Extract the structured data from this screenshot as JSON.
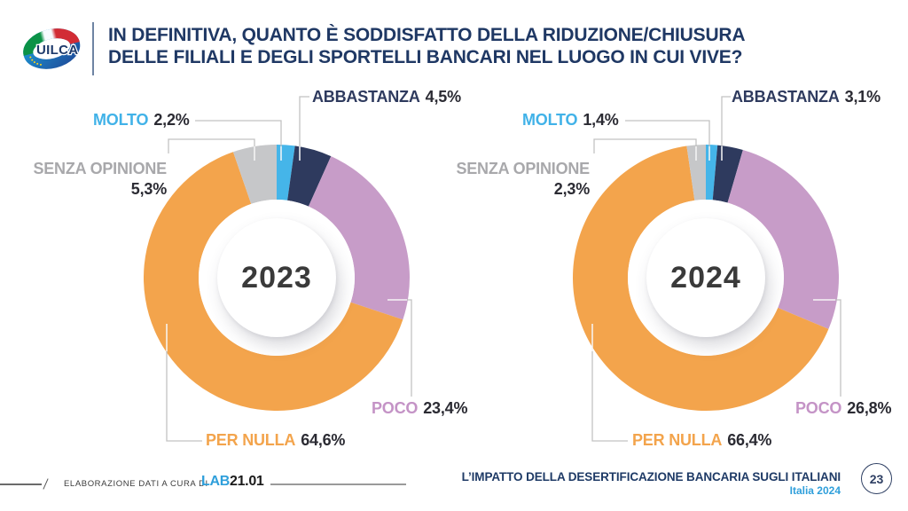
{
  "header": {
    "logo_text": "UILCA",
    "title_line1": "IN DEFINITIVA, QUANTO È SODDISFATTO DELLA RIDUZIONE/CHIUSURA",
    "title_line2": "DELLE FILIALI E DEGLI SPORTELLI BANCARI NEL LUOGO IN CUI VIVE?"
  },
  "colors": {
    "title": "#1f3864",
    "molto": "#41b2e8",
    "abbastanza": "#2e3a5e",
    "poco": "#c493c6",
    "per_nulla": "#f3a44c",
    "senza_opinione": "#a8a8ab",
    "value_text": "#2b2b33",
    "year_text": "#3a3a3a",
    "brand_blue": "#2f9fdb",
    "brand_dark": "#1a1a1a",
    "footer_navy": "#1e3a66",
    "leader_line": "#c2c2c2"
  },
  "chart_data": [
    {
      "type": "pie",
      "donut": true,
      "center_label": "2023",
      "labels": [
        "MOLTO",
        "ABBASTANZA",
        "POCO",
        "PER NULLA",
        "SENZA OPINIONE"
      ],
      "values": [
        2.2,
        4.5,
        23.4,
        64.6,
        5.3
      ],
      "display_values": [
        "2,2%",
        "4,5%",
        "23,4%",
        "64,6%",
        "5,3%"
      ],
      "colors": [
        "#45b5e9",
        "#2e3a5e",
        "#c79cc8",
        "#f3a44c",
        "#c6c7c9"
      ],
      "start_angle_deg": 0,
      "outer_radius": 150,
      "inner_radius": 88,
      "legend_position": "callout-labels"
    },
    {
      "type": "pie",
      "donut": true,
      "center_label": "2024",
      "labels": [
        "MOLTO",
        "ABBASTANZA",
        "POCO",
        "PER NULLA",
        "SENZA OPINIONE"
      ],
      "values": [
        1.4,
        3.1,
        26.8,
        66.4,
        2.3
      ],
      "display_values": [
        "1,4%",
        "3,1%",
        "26,8%",
        "66,4%",
        "2,3%"
      ],
      "colors": [
        "#45b5e9",
        "#2e3a5e",
        "#c79cc8",
        "#f3a44c",
        "#c6c7c9"
      ],
      "start_angle_deg": 0,
      "outer_radius": 150,
      "inner_radius": 88,
      "legend_position": "callout-labels"
    }
  ],
  "footer": {
    "credit_prefix": "ELABORAZIONE DATI A CURA DI",
    "credit_brand_blue": "LAB",
    "credit_brand_dark": "21.01",
    "report_title": "L’IMPATTO DELLA DESERTIFICAZIONE BANCARIA SUGLI ITALIANI",
    "report_subtitle": "Italia 2024",
    "page_number": "23"
  }
}
